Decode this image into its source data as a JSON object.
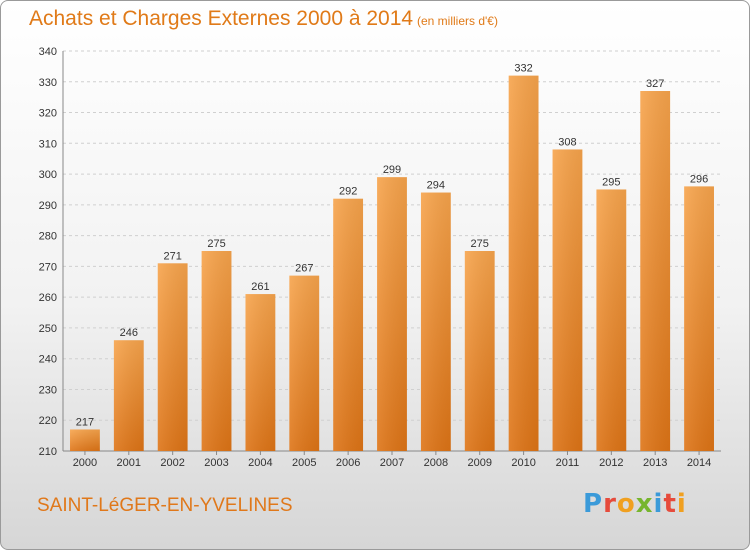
{
  "title": "Achats et Charges Externes 2000 à 2014",
  "subtitle": "(en milliers d'€)",
  "commune": "SAINT-LéGER-EN-YVELINES",
  "logo": {
    "letters": [
      "P",
      "r",
      "o",
      "x",
      "i",
      "t",
      "i"
    ],
    "colors": [
      "#3a9ad9",
      "#e64b3c",
      "#f0a020",
      "#77b52e",
      "#3a9ad9",
      "#e64b3c",
      "#f0a020"
    ]
  },
  "colors": {
    "bar": "#f39a3c",
    "bar_dark": "#e07a18",
    "accent": "#e07a18"
  },
  "chart_data": {
    "type": "bar",
    "title": "Achats et Charges Externes 2000 à 2014",
    "subtitle": "(en milliers d'€)",
    "categories": [
      "2000",
      "2001",
      "2002",
      "2003",
      "2004",
      "2005",
      "2006",
      "2007",
      "2008",
      "2009",
      "2010",
      "2011",
      "2012",
      "2013",
      "2014"
    ],
    "values": [
      217,
      246,
      271,
      275,
      261,
      267,
      292,
      299,
      294,
      275,
      332,
      308,
      295,
      327,
      296
    ],
    "ylim": [
      210,
      340
    ],
    "yticks": [
      210,
      220,
      230,
      240,
      250,
      260,
      270,
      280,
      290,
      300,
      310,
      320,
      330,
      340
    ],
    "grid": true,
    "xlabel": "",
    "ylabel": ""
  }
}
